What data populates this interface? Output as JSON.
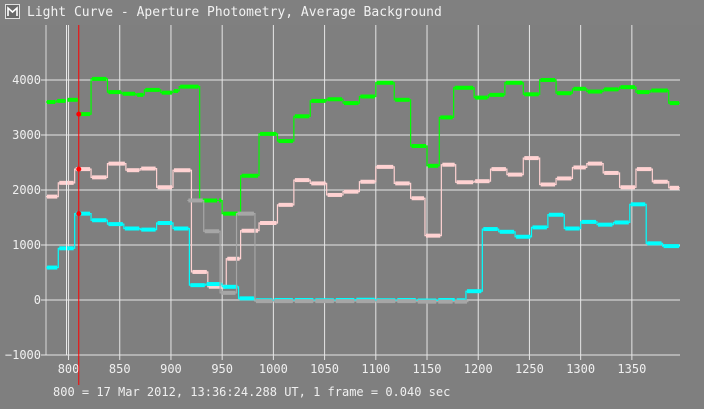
{
  "window": {
    "title": "Light Curve - Aperture Photometry, Average Background",
    "icon": "light-curve-app-icon"
  },
  "footer_text": "800 = 17 Mar 2012, 13:36:24.288 UT, 1 frame = 0.040 sec",
  "colors": {
    "background": "#7f7f7f",
    "grid": "#e6e6e6",
    "green": "#00ff00",
    "pink": "#ffd2d2",
    "cyan": "#00ffff",
    "gray": "#a6a6a6",
    "cursor": "#ff0000"
  },
  "chart_data": {
    "type": "line",
    "xlim": [
      778,
      1397
    ],
    "ylim": [
      -1000,
      5000
    ],
    "x_ticks": [
      "800",
      "850",
      "900",
      "950",
      "1000",
      "1050",
      "1100",
      "1150",
      "1200",
      "1250",
      "1300",
      "1350"
    ],
    "y_ticks": [
      "−1000",
      "0",
      "1000",
      "2000",
      "3000",
      "4000"
    ],
    "grid": true,
    "cursor_x": 810,
    "series": [
      {
        "color": "green",
        "values": [
          [
            778,
            3600
          ],
          [
            788,
            3620
          ],
          [
            798,
            3640
          ],
          [
            810,
            3380
          ],
          [
            822,
            4020
          ],
          [
            838,
            3780
          ],
          [
            852,
            3750
          ],
          [
            866,
            3730
          ],
          [
            874,
            3820
          ],
          [
            890,
            3770
          ],
          [
            902,
            3800
          ],
          [
            908,
            3880
          ],
          [
            928,
            1810
          ],
          [
            946,
            1810
          ],
          [
            950,
            1570
          ],
          [
            968,
            2260
          ],
          [
            986,
            3020
          ],
          [
            1004,
            2890
          ],
          [
            1020,
            3340
          ],
          [
            1036,
            3620
          ],
          [
            1052,
            3650
          ],
          [
            1068,
            3580
          ],
          [
            1084,
            3700
          ],
          [
            1100,
            3950
          ],
          [
            1118,
            3640
          ],
          [
            1134,
            2800
          ],
          [
            1150,
            2440
          ],
          [
            1162,
            3320
          ],
          [
            1176,
            3860
          ],
          [
            1196,
            3680
          ],
          [
            1210,
            3730
          ],
          [
            1226,
            3950
          ],
          [
            1244,
            3740
          ],
          [
            1260,
            4000
          ],
          [
            1276,
            3760
          ],
          [
            1292,
            3840
          ],
          [
            1306,
            3790
          ],
          [
            1322,
            3830
          ],
          [
            1338,
            3870
          ],
          [
            1354,
            3780
          ],
          [
            1368,
            3810
          ],
          [
            1386,
            3580
          ],
          [
            1397,
            3580
          ]
        ]
      },
      {
        "color": "pink",
        "values": [
          [
            778,
            1880
          ],
          [
            790,
            2130
          ],
          [
            806,
            2380
          ],
          [
            822,
            2230
          ],
          [
            838,
            2480
          ],
          [
            856,
            2360
          ],
          [
            870,
            2390
          ],
          [
            886,
            2050
          ],
          [
            902,
            2360
          ],
          [
            920,
            510
          ],
          [
            936,
            240
          ],
          [
            954,
            750
          ],
          [
            968,
            1260
          ],
          [
            986,
            1400
          ],
          [
            1004,
            1730
          ],
          [
            1020,
            2180
          ],
          [
            1036,
            2120
          ],
          [
            1052,
            1910
          ],
          [
            1068,
            1970
          ],
          [
            1084,
            2150
          ],
          [
            1100,
            2420
          ],
          [
            1118,
            2120
          ],
          [
            1134,
            1850
          ],
          [
            1148,
            1170
          ],
          [
            1164,
            2460
          ],
          [
            1178,
            2140
          ],
          [
            1196,
            2160
          ],
          [
            1212,
            2380
          ],
          [
            1228,
            2280
          ],
          [
            1244,
            2580
          ],
          [
            1260,
            2100
          ],
          [
            1276,
            2210
          ],
          [
            1292,
            2410
          ],
          [
            1306,
            2480
          ],
          [
            1322,
            2310
          ],
          [
            1338,
            2050
          ],
          [
            1354,
            2380
          ],
          [
            1370,
            2150
          ],
          [
            1386,
            2040
          ],
          [
            1397,
            2040
          ]
        ]
      },
      {
        "color": "cyan",
        "values": [
          [
            778,
            590
          ],
          [
            790,
            940
          ],
          [
            806,
            1570
          ],
          [
            822,
            1450
          ],
          [
            838,
            1380
          ],
          [
            854,
            1300
          ],
          [
            870,
            1280
          ],
          [
            886,
            1400
          ],
          [
            902,
            1300
          ],
          [
            918,
            270
          ],
          [
            934,
            290
          ],
          [
            950,
            240
          ],
          [
            966,
            30
          ],
          [
            982,
            -5
          ],
          [
            1000,
            0
          ],
          [
            1020,
            0
          ],
          [
            1040,
            -5
          ],
          [
            1060,
            0
          ],
          [
            1080,
            5
          ],
          [
            1100,
            -5
          ],
          [
            1120,
            0
          ],
          [
            1140,
            -10
          ],
          [
            1160,
            0
          ],
          [
            1178,
            -5
          ],
          [
            1188,
            160
          ],
          [
            1204,
            1290
          ],
          [
            1220,
            1240
          ],
          [
            1236,
            1150
          ],
          [
            1252,
            1320
          ],
          [
            1268,
            1550
          ],
          [
            1284,
            1300
          ],
          [
            1300,
            1420
          ],
          [
            1316,
            1370
          ],
          [
            1332,
            1410
          ],
          [
            1348,
            1740
          ],
          [
            1364,
            1030
          ],
          [
            1380,
            980
          ],
          [
            1397,
            980
          ]
        ]
      },
      {
        "color": "gray",
        "values": [
          [
            916,
            1810
          ],
          [
            932,
            1250
          ],
          [
            948,
            130
          ],
          [
            964,
            1570
          ],
          [
            982,
            -20
          ],
          [
            1000,
            -20
          ],
          [
            1020,
            -20
          ],
          [
            1040,
            -20
          ],
          [
            1060,
            -20
          ],
          [
            1080,
            -20
          ],
          [
            1100,
            -20
          ],
          [
            1120,
            -20
          ],
          [
            1140,
            -30
          ],
          [
            1160,
            -30
          ],
          [
            1176,
            -30
          ],
          [
            1190,
            -20
          ]
        ]
      }
    ]
  }
}
